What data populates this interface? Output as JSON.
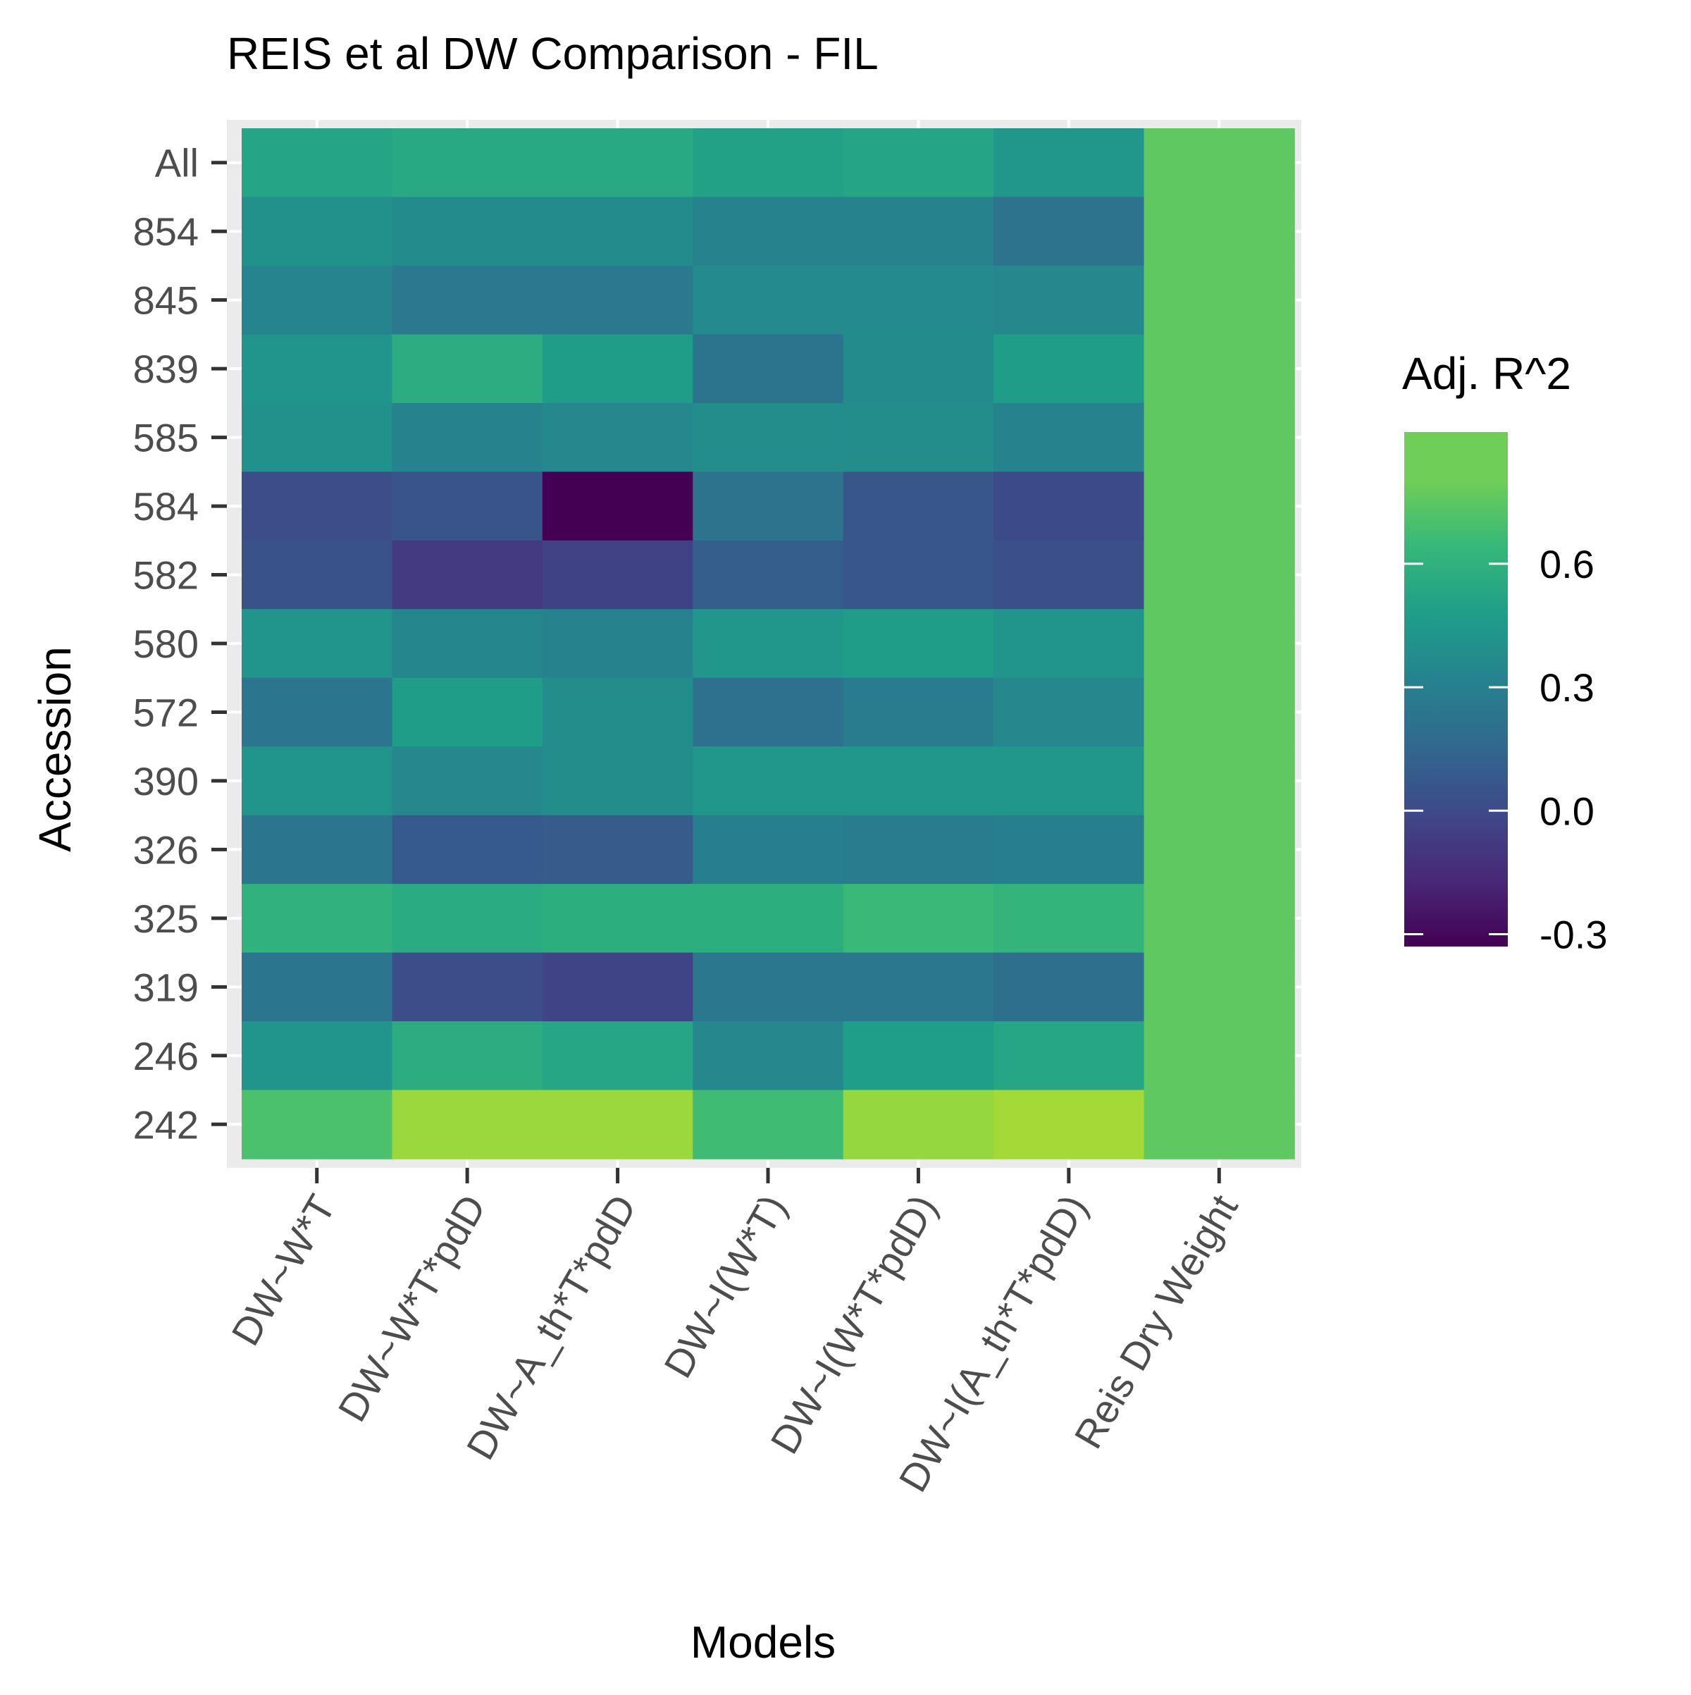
{
  "chart_data": {
    "type": "heatmap",
    "title": "REIS et al DW Comparison - FIL",
    "xlabel": "Models",
    "ylabel": "Accession",
    "x_categories": [
      "DW~W*T",
      "DW~W*T*pdD",
      "DW~A_th*T*pdD",
      "DW~I(W*T)",
      "DW~I(W*T*pdD)",
      "DW~I(A_th*T*pdD)",
      "Reis Dry Weight"
    ],
    "y_categories": [
      "All",
      "854",
      "845",
      "839",
      "585",
      "584",
      "582",
      "580",
      "572",
      "390",
      "326",
      "325",
      "319",
      "246",
      "242"
    ],
    "values": [
      [
        0.52,
        0.54,
        0.54,
        0.5,
        0.52,
        0.43,
        0.76
      ],
      [
        0.4,
        0.37,
        0.37,
        0.32,
        0.32,
        0.22,
        0.76
      ],
      [
        0.33,
        0.26,
        0.26,
        0.36,
        0.36,
        0.35,
        0.76
      ],
      [
        0.42,
        0.57,
        0.47,
        0.23,
        0.37,
        0.47,
        0.76
      ],
      [
        0.4,
        0.32,
        0.35,
        0.38,
        0.38,
        0.32,
        0.76
      ],
      [
        0.02,
        0.05,
        -0.33,
        0.22,
        0.06,
        0.0,
        0.76
      ],
      [
        0.04,
        -0.08,
        -0.04,
        0.1,
        0.06,
        0.03,
        0.76
      ],
      [
        0.42,
        0.34,
        0.32,
        0.43,
        0.47,
        0.42,
        0.76
      ],
      [
        0.24,
        0.47,
        0.38,
        0.21,
        0.28,
        0.35,
        0.76
      ],
      [
        0.42,
        0.35,
        0.38,
        0.43,
        0.44,
        0.44,
        0.76
      ],
      [
        0.24,
        0.08,
        0.09,
        0.3,
        0.27,
        0.3,
        0.76
      ],
      [
        0.6,
        0.56,
        0.58,
        0.58,
        0.65,
        0.62,
        0.76
      ],
      [
        0.24,
        0.02,
        -0.03,
        0.25,
        0.25,
        0.2,
        0.76
      ],
      [
        0.42,
        0.57,
        0.53,
        0.35,
        0.48,
        0.53,
        0.76
      ],
      [
        0.7,
        0.9,
        0.9,
        0.67,
        0.89,
        0.92,
        0.76
      ]
    ],
    "colorbar": {
      "title": "Adj. R^2",
      "ticks": [
        "0.6",
        "0.3",
        "0.0",
        "-0.3"
      ],
      "range": [
        -0.33,
        0.92
      ],
      "palette": "viridis"
    },
    "grid": true,
    "legend_position": "right"
  }
}
